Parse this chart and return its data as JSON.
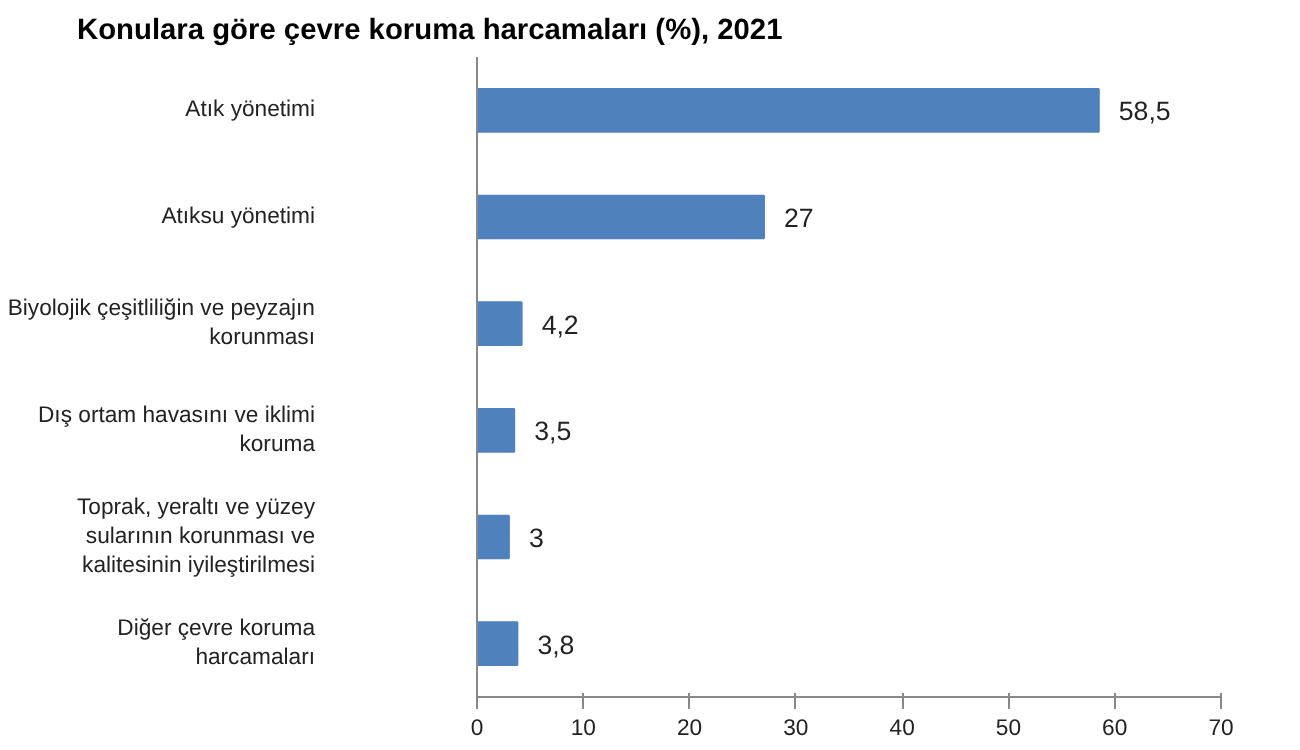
{
  "chart_data": {
    "type": "bar",
    "orientation": "horizontal",
    "title": "Konulara göre çevre koruma harcamaları (%), 2021",
    "categories": [
      "Atık yönetimi",
      "Atıksu yönetimi",
      "Biyolojik çeşitliliğin ve peyzajın\nkorunması",
      "Dış ortam havasını ve iklimi\nkoruma",
      "Toprak, yeraltı ve yüzey\nsularının korunması ve\nkalitesinin iyileştirilmesi",
      "Diğer çevre koruma\nharcamaları"
    ],
    "values": [
      58.5,
      27,
      4.2,
      3.5,
      3,
      3.8
    ],
    "value_labels": [
      "58,5",
      "27",
      "4,2",
      "3,5",
      "3",
      "3,8"
    ],
    "color": "#4f81bd",
    "xlim": [
      0,
      70
    ],
    "xticks": [
      0,
      10,
      20,
      30,
      40,
      50,
      60,
      70
    ],
    "grid": false
  }
}
